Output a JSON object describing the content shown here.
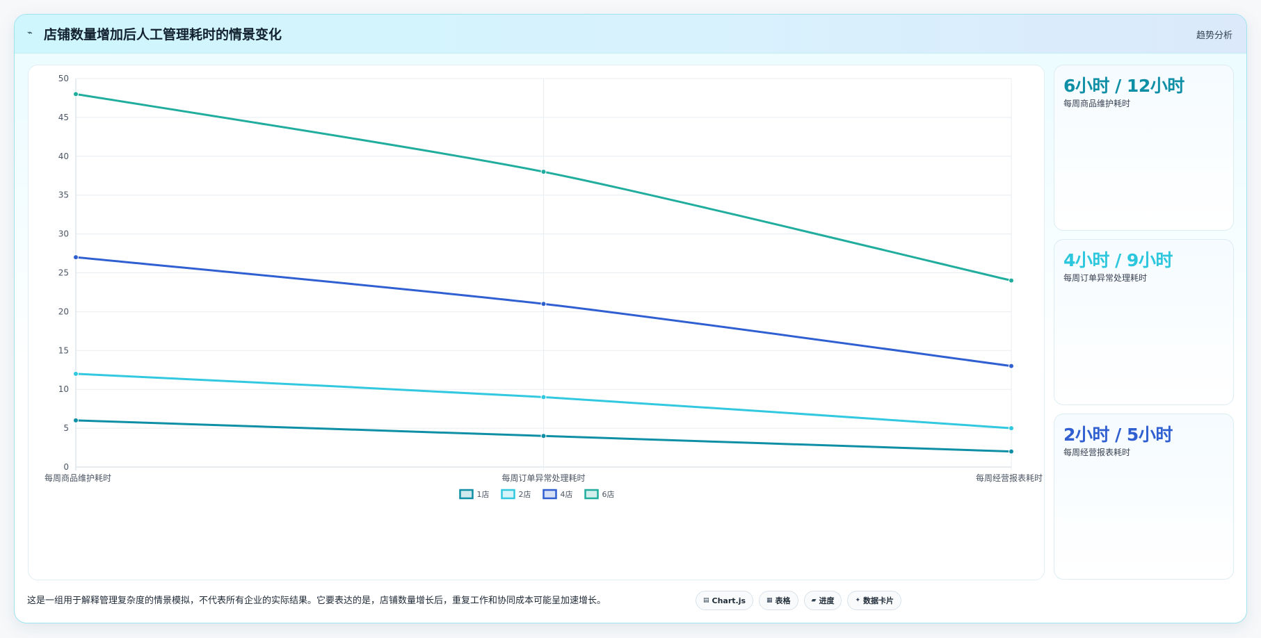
{
  "header": {
    "icon": "trend-line-icon",
    "title": "店铺数量增加后人工管理耗时的情景变化",
    "tag": "趋势分析"
  },
  "stats": [
    {
      "value": "6小时 / 12小时",
      "label": "每周商品维护耗时",
      "color": "#0e8fa6"
    },
    {
      "value": "4小时 / 9小时",
      "label": "每周订单异常处理耗时",
      "color": "#2cc6dd"
    },
    {
      "value": "2小时 / 5小时",
      "label": "每周经营报表耗时",
      "color": "#2f5fd0"
    }
  ],
  "footer": {
    "note": "这是一组用于解释管理复杂度的情景模拟，不代表所有企业的实际结果。它要表达的是，店铺数量增长后，重复工作和协同成本可能呈加速增长。",
    "chips": [
      {
        "icon": "chart-icon",
        "glyph": "▤",
        "label": "Chart.js"
      },
      {
        "icon": "table-icon",
        "glyph": "▦",
        "label": "表格"
      },
      {
        "icon": "progress-icon",
        "glyph": "▰",
        "label": "进度"
      },
      {
        "icon": "card-icon",
        "glyph": "✦",
        "label": "数据卡片"
      }
    ]
  },
  "chart_data": {
    "type": "line",
    "categories": [
      "每周商品维护耗时",
      "每周订单异常处理耗时",
      "每周经营报表耗时"
    ],
    "series": [
      {
        "name": "1店",
        "values": [
          6,
          4,
          2
        ],
        "color": "#0e8fa6"
      },
      {
        "name": "2店",
        "values": [
          12,
          9,
          5
        ],
        "color": "#32c8e0"
      },
      {
        "name": "4店",
        "values": [
          27,
          21,
          13
        ],
        "color": "#2f5fd0"
      },
      {
        "name": "6店",
        "values": [
          48,
          38,
          24
        ],
        "color": "#20ad9e"
      }
    ],
    "ylim": [
      0,
      50
    ],
    "yticks": [
      0,
      5,
      10,
      15,
      20,
      25,
      30,
      35,
      40,
      45,
      50
    ],
    "grid": true,
    "legend": "bottom"
  }
}
